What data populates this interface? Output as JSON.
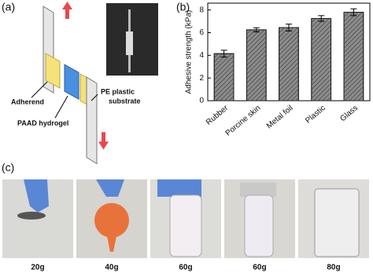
{
  "panel_labels": [
    "(a)",
    "(b)",
    "(c)"
  ],
  "diagram": {
    "adherend": "Adherend",
    "hydrogel": "PAAD hydrogel",
    "substrate": [
      "PE plastic",
      "substrate"
    ]
  },
  "chart_data": {
    "type": "bar",
    "y_label": "Adhesive strength (kPa)",
    "categories": [
      "Rubber",
      "Porcine skin",
      "Metal foil",
      "Plastic",
      "Glass"
    ],
    "values": [
      4.15,
      6.25,
      6.45,
      7.25,
      7.8
    ],
    "errors": [
      0.3,
      0.18,
      0.3,
      0.25,
      0.3
    ],
    "color": "#8c8c8c",
    "ylim": [
      0,
      8.6
    ],
    "yticks": [
      0,
      2,
      4,
      6,
      8
    ]
  },
  "photos": {
    "captions": [
      "20g",
      "40g",
      "60g",
      "60g",
      "80g"
    ]
  }
}
